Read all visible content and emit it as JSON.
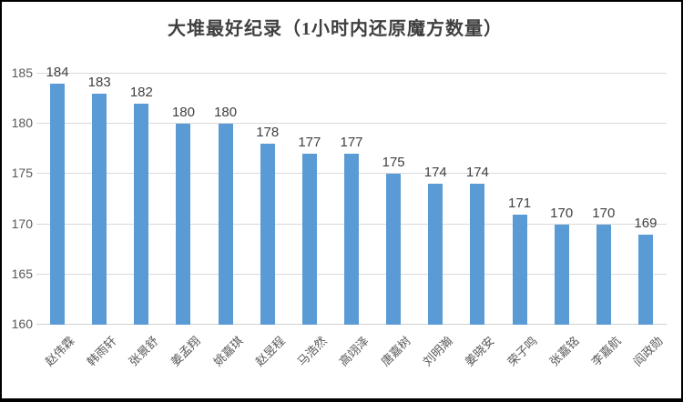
{
  "chart_data": {
    "type": "bar",
    "title": "大堆最好纪录（1小时内还原魔方数量）",
    "categories": [
      "赵伟霖",
      "韩雨轩",
      "张景舒",
      "姜孟翔",
      "姚嘉琪",
      "赵昱程",
      "马浩然",
      "高翊泽",
      "唐嘉树",
      "刘明瀚",
      "姜晓安",
      "荣子鸣",
      "张嘉铭",
      "李嘉航",
      "阎政勋"
    ],
    "values": [
      184,
      183,
      182,
      180,
      180,
      178,
      177,
      177,
      175,
      174,
      174,
      171,
      170,
      170,
      169
    ],
    "data_labels": [
      "184",
      "183",
      "182",
      "180",
      "180",
      "178",
      "177",
      "177",
      "175",
      "174",
      "174",
      "171",
      "170",
      "170",
      "169"
    ],
    "xlabel": "",
    "ylabel": "",
    "ylim": [
      160,
      185
    ],
    "yticks": [
      160,
      165,
      170,
      175,
      180,
      185
    ],
    "ytick_labels": [
      "160",
      "165",
      "170",
      "175",
      "180",
      "185"
    ],
    "grid": true,
    "legend_position": "none",
    "bar_color": "#5b9bd5",
    "gridline_color": "#d9d9d9",
    "label_color": "#404040",
    "axis_text_color": "#595959"
  }
}
